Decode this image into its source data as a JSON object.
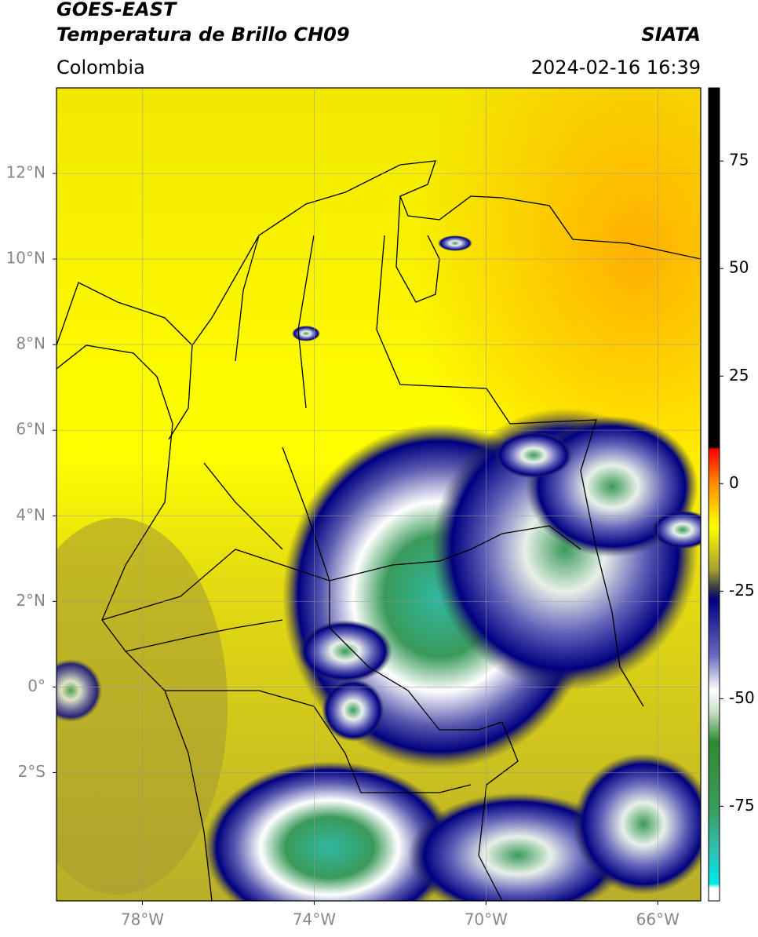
{
  "map": {
    "title": "GOES-EAST",
    "subtitle": "Temperatura de Brillo CH09",
    "agency": "SIATA",
    "region": "Colombia",
    "timestamp": "2024-02-16 16:39",
    "xlim": [
      -80,
      -65
    ],
    "ylim": [
      -5,
      14
    ],
    "xticks": [
      {
        "value": -78,
        "label": "78°W"
      },
      {
        "value": -74,
        "label": "74°W"
      },
      {
        "value": -70,
        "label": "70°W"
      },
      {
        "value": -66,
        "label": "66°W"
      }
    ],
    "yticks": [
      {
        "value": 12,
        "label": "12°N"
      },
      {
        "value": 10,
        "label": "10°N"
      },
      {
        "value": 8,
        "label": "8°N"
      },
      {
        "value": 6,
        "label": "6°N"
      },
      {
        "value": 4,
        "label": "4°N"
      },
      {
        "value": 2,
        "label": "2°N"
      },
      {
        "value": 0,
        "label": "0°"
      },
      {
        "value": -2,
        "label": "2°S"
      }
    ],
    "grid": true,
    "colorbar": {
      "lim": [
        -97,
        92
      ],
      "ticks": [
        75,
        50,
        25,
        0,
        -25,
        -50,
        -75
      ],
      "stops": [
        {
          "value": 92,
          "color": "#000000"
        },
        {
          "value": 8.5,
          "color": "#000000"
        },
        {
          "value": 8,
          "color": "#ff0000"
        },
        {
          "value": 0,
          "color": "#ff8c00"
        },
        {
          "value": -10,
          "color": "#ffff00"
        },
        {
          "value": -20,
          "color": "#a8a030"
        },
        {
          "value": -24,
          "color": "#404040"
        },
        {
          "value": -27,
          "color": "#000080"
        },
        {
          "value": -40,
          "color": "#6a6ac0"
        },
        {
          "value": -48,
          "color": "#ffffff"
        },
        {
          "value": -53,
          "color": "#c8e0c8"
        },
        {
          "value": -60,
          "color": "#2e8b2e"
        },
        {
          "value": -75,
          "color": "#3a9a5a"
        },
        {
          "value": -85,
          "color": "#30c0b0"
        },
        {
          "value": -93,
          "color": "#00e8e8"
        },
        {
          "value": -94,
          "color": "#ffffff"
        },
        {
          "value": -97,
          "color": "#ffffff"
        }
      ]
    }
  }
}
